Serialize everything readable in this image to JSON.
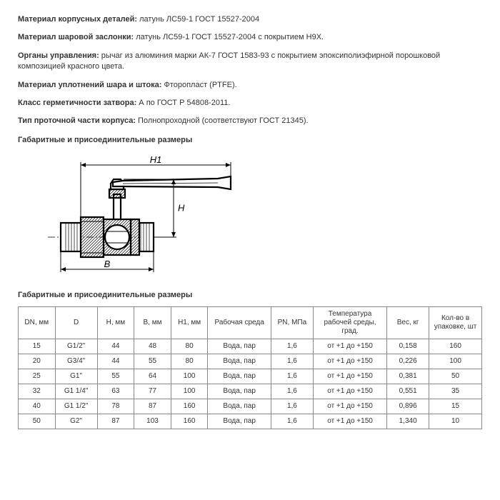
{
  "specs": [
    {
      "label": "Материал корпусных деталей:",
      "value": "латунь ЛС59-1 ГОСТ 15527-2004"
    },
    {
      "label": "Материал шаровой заслонки:",
      "value": "латунь ЛС59-1 ГОСТ 15527-2004 с покрытием Н9Х."
    },
    {
      "label": "Органы управления:",
      "value": "рычаг из алюминия марки АК-7 ГОСТ 1583-93 с покрытием эпоксиполиэфирной порошковой композицией красного цвета."
    },
    {
      "label": "Материал уплотнений шара и штока:",
      "value": "Фторопласт (PTFE)."
    },
    {
      "label": "Класс герметичности затвора:",
      "value": "А по ГОСТ Р 54808-2011."
    },
    {
      "label": "Тип проточной части корпуса:",
      "value": "Полнопроходной (соответствуют ГОСТ 21345)."
    }
  ],
  "section1": "Габаритные и присоединительные размеры",
  "section2": "Габаритные и присоединительные размеры",
  "diagram": {
    "label_H1": "H1",
    "label_H": "H",
    "label_B": "B",
    "stroke": "#000000",
    "stroke_thin": 1,
    "stroke_thick": 2.2,
    "hatch_gap": 4
  },
  "table": {
    "columns": [
      "DN, мм",
      "D",
      "H, мм",
      "B, мм",
      "H1, мм",
      "Рабочая среда",
      "PN, МПа",
      "Температура рабочей среды, град.",
      "Вес, кг",
      "Кол-во в упаковке, шт"
    ],
    "rows": [
      [
        "15",
        "G1/2\"",
        "44",
        "48",
        "80",
        "Вода, пар",
        "1,6",
        "от +1 до +150",
        "0,158",
        "160"
      ],
      [
        "20",
        "G3/4\"",
        "44",
        "55",
        "80",
        "Вода, пар",
        "1,6",
        "от +1 до +150",
        "0,226",
        "100"
      ],
      [
        "25",
        "G1\"",
        "55",
        "64",
        "100",
        "Вода, пар",
        "1,6",
        "от +1 до +150",
        "0,381",
        "50"
      ],
      [
        "32",
        "G1 1/4\"",
        "63",
        "77",
        "100",
        "Вода, пар",
        "1,6",
        "от +1 до +150",
        "0,551",
        "35"
      ],
      [
        "40",
        "G1 1/2\"",
        "78",
        "87",
        "160",
        "Вода, пар",
        "1,6",
        "от +1 до +150",
        "0,896",
        "15"
      ],
      [
        "50",
        "G2\"",
        "87",
        "103",
        "160",
        "Вода, пар",
        "1,6",
        "от +1 до +150",
        "1,340",
        "10"
      ]
    ],
    "col_widths_pct": [
      7,
      8,
      7,
      7,
      7,
      12,
      8,
      14,
      8,
      10
    ]
  }
}
